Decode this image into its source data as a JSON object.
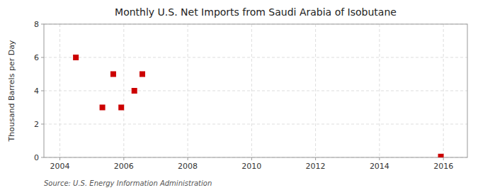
{
  "chart_data": {
    "type": "scatter",
    "title": "Monthly U.S. Net Imports from Saudi Arabia of Isobutane",
    "y_label": "Thousand Barrels per Day",
    "annotation": "Source: U.S. Energy Information Administration",
    "x": [
      2004.5,
      2005.33,
      2005.67,
      2005.92,
      2006.33,
      2006.58,
      2015.92
    ],
    "values": [
      6,
      3,
      5,
      3,
      4,
      5,
      0.05
    ],
    "color": "#cc0000",
    "marker": "square",
    "xlim": [
      2003.5,
      2016.75
    ],
    "ylim": [
      0,
      8
    ],
    "xticks": [
      2004,
      2006,
      2008,
      2010,
      2012,
      2014,
      2016
    ],
    "yticks": [
      0,
      2,
      4,
      6,
      8
    ],
    "grid": true
  }
}
